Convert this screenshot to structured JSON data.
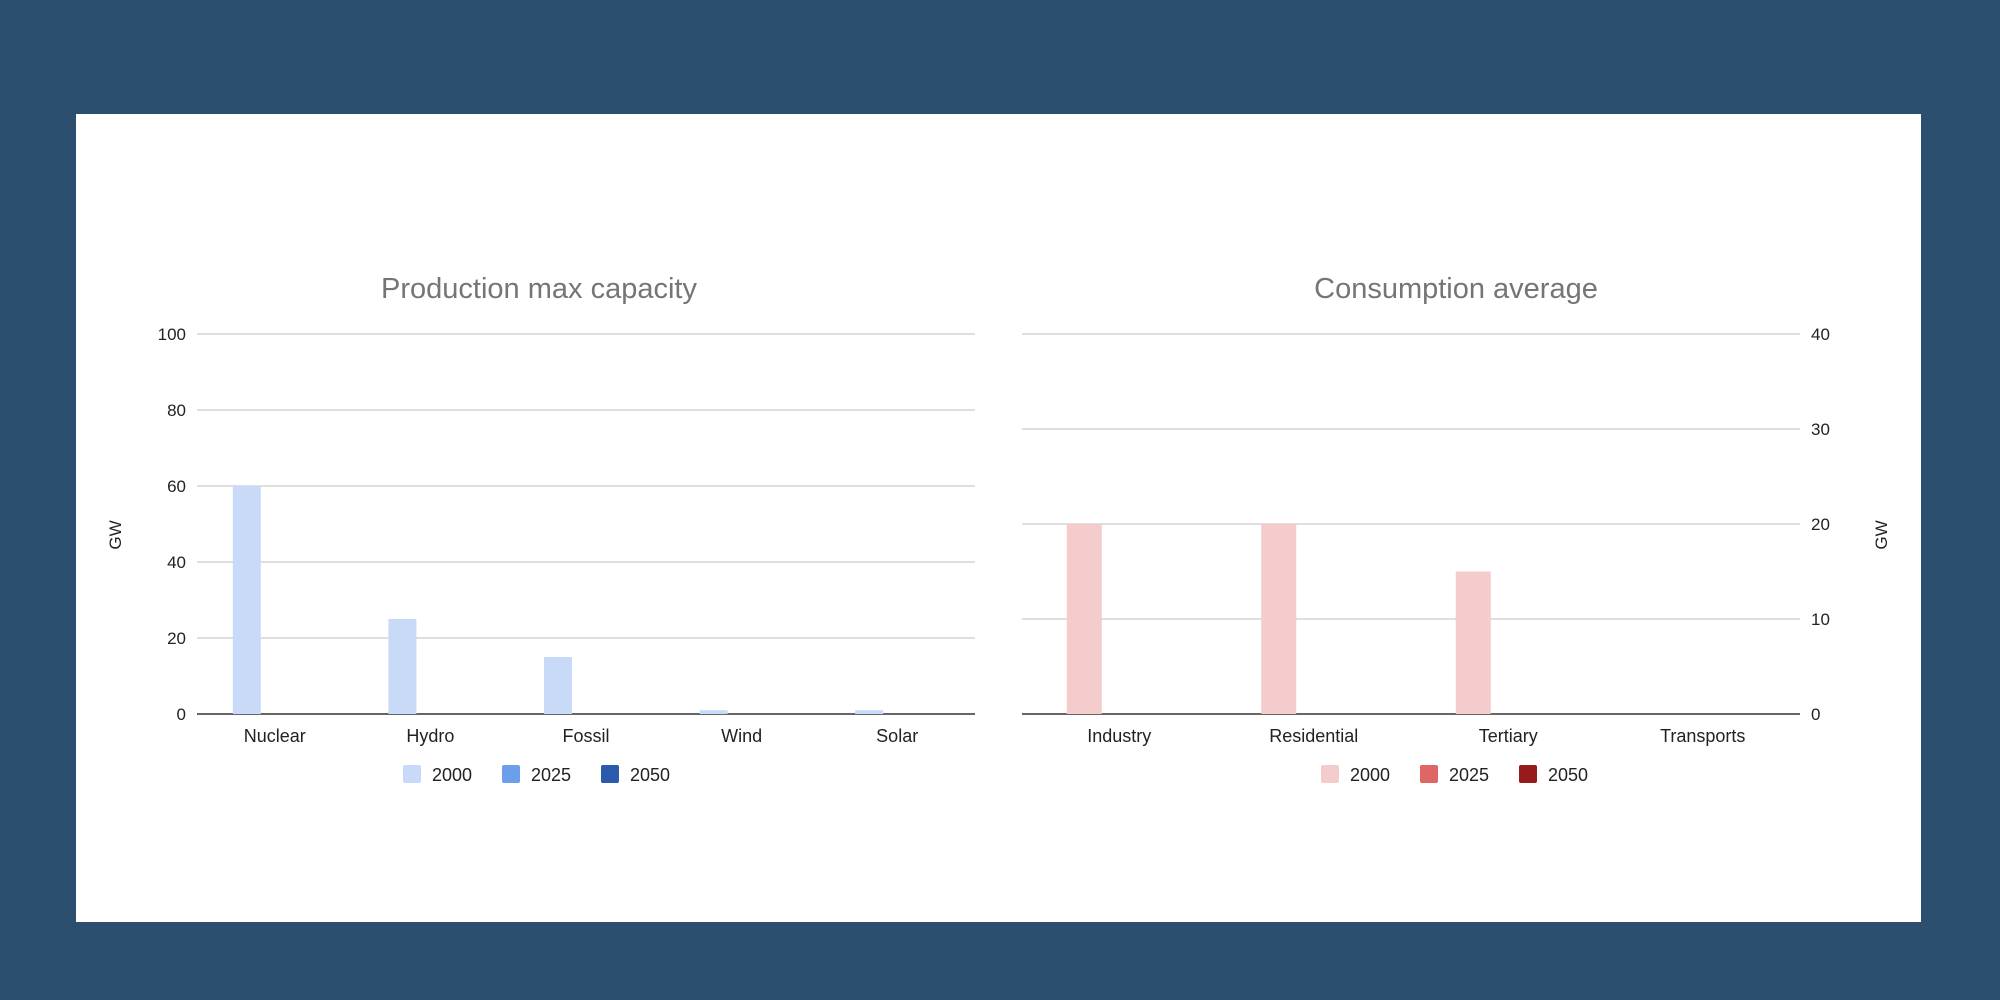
{
  "chart_data": [
    {
      "id": "production",
      "type": "bar",
      "title": "Production max capacity",
      "categories": [
        "Nuclear",
        "Hydro",
        "Fossil",
        "Wind",
        "Solar"
      ],
      "series": [
        {
          "name": "2000",
          "values": [
            60,
            25,
            15,
            1,
            1
          ],
          "color": "#c9daf8"
        },
        {
          "name": "2025",
          "values": [
            0,
            0,
            0,
            0,
            0
          ],
          "color": "#6d9eeb"
        },
        {
          "name": "2050",
          "values": [
            0,
            0,
            0,
            0,
            0
          ],
          "color": "#2b59ab"
        }
      ],
      "ylabel": "GW",
      "ylim": [
        0,
        100
      ],
      "yticks": [
        0,
        20,
        40,
        60,
        80,
        100
      ],
      "axis_side": "left",
      "grid": true,
      "legend": "bottom"
    },
    {
      "id": "consumption",
      "type": "bar",
      "title": "Consumption average",
      "categories": [
        "Industry",
        "Residential",
        "Tertiary",
        "Transports"
      ],
      "series": [
        {
          "name": "2000",
          "values": [
            20,
            20,
            15,
            0
          ],
          "color": "#f4cccc"
        },
        {
          "name": "2025",
          "values": [
            0,
            0,
            0,
            0
          ],
          "color": "#e06666"
        },
        {
          "name": "2050",
          "values": [
            0,
            0,
            0,
            0
          ],
          "color": "#981b1b"
        }
      ],
      "ylabel": "GW",
      "ylim": [
        0,
        40
      ],
      "yticks": [
        0,
        10,
        20,
        30,
        40
      ],
      "axis_side": "right",
      "grid": true,
      "legend": "bottom"
    }
  ]
}
